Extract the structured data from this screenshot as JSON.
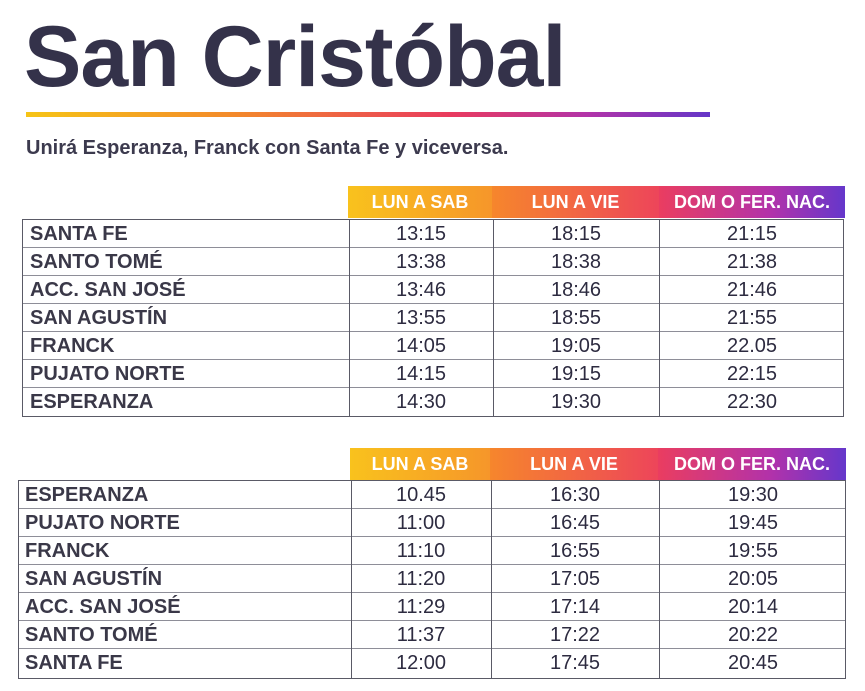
{
  "title": "San Cristóbal",
  "subtitle": "Unirá Esperanza, Franck con Santa Fe y viceversa.",
  "tables": [
    {
      "headers": [
        "LUN A SAB",
        "LUN A VIE",
        "DOM O FER. NAC."
      ],
      "rows": [
        {
          "stop": "SANTA FE",
          "times": [
            "13:15",
            "18:15",
            "21:15"
          ]
        },
        {
          "stop": "SANTO TOMÉ",
          "times": [
            "13:38",
            "18:38",
            "21:38"
          ]
        },
        {
          "stop": "ACC. SAN JOSÉ",
          "times": [
            "13:46",
            "18:46",
            "21:46"
          ]
        },
        {
          "stop": "SAN AGUSTÍN",
          "times": [
            "13:55",
            "18:55",
            "21:55"
          ]
        },
        {
          "stop": "FRANCK",
          "times": [
            "14:05",
            "19:05",
            "22.05"
          ]
        },
        {
          "stop": "PUJATO NORTE",
          "times": [
            "14:15",
            "19:15",
            "22:15"
          ]
        },
        {
          "stop": "ESPERANZA",
          "times": [
            "14:30",
            "19:30",
            "22:30"
          ]
        }
      ]
    },
    {
      "headers": [
        "LUN A SAB",
        "LUN A VIE",
        "DOM O FER. NAC."
      ],
      "rows": [
        {
          "stop": "ESPERANZA",
          "times": [
            "10.45",
            "16:30",
            "19:30"
          ]
        },
        {
          "stop": "PUJATO NORTE",
          "times": [
            "11:00",
            "16:45",
            "19:45"
          ]
        },
        {
          "stop": "FRANCK",
          "times": [
            "11:10",
            "16:55",
            "19:55"
          ]
        },
        {
          "stop": "SAN AGUSTÍN",
          "times": [
            "11:20",
            "17:05",
            "20:05"
          ]
        },
        {
          "stop": "ACC. SAN JOSÉ",
          "times": [
            "11:29",
            "17:14",
            "20:14"
          ]
        },
        {
          "stop": "SANTO TOMÉ",
          "times": [
            "11:37",
            "17:22",
            "20:22"
          ]
        },
        {
          "stop": "SANTA FE",
          "times": [
            "12:00",
            "17:45",
            "20:45"
          ]
        }
      ]
    }
  ]
}
